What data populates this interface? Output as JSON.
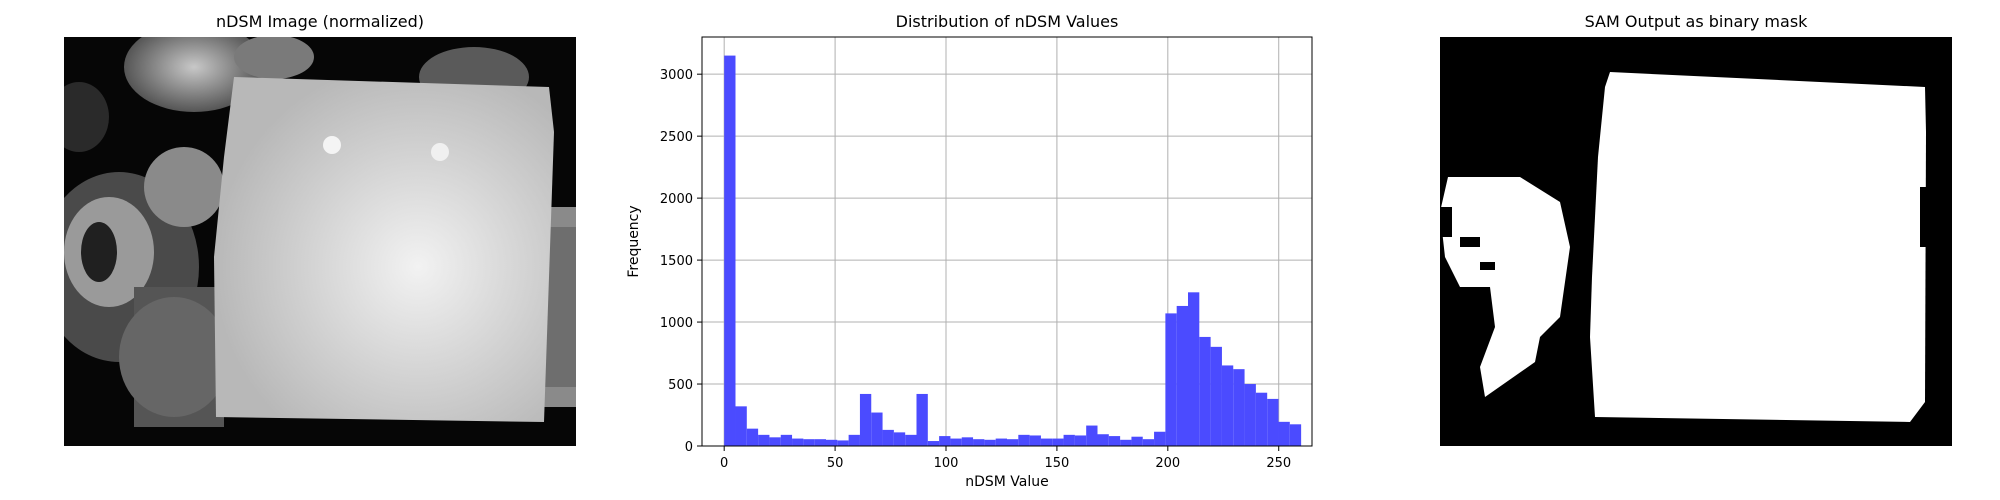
{
  "figure": {
    "panels": [
      {
        "title": "nDSM Image (normalized)"
      },
      {
        "title": "Distribution of nDSM Values"
      },
      {
        "title": "SAM Output as binary mask"
      }
    ]
  },
  "chart_data": {
    "type": "bar",
    "title": "Distribution of nDSM Values",
    "xlabel": "nDSM Value",
    "ylabel": "Frequency",
    "xlim": [
      -10,
      265
    ],
    "ylim": [
      0,
      3300
    ],
    "xticks": [
      0,
      50,
      100,
      150,
      200,
      250
    ],
    "yticks": [
      0,
      500,
      1000,
      1500,
      2000,
      2500,
      3000
    ],
    "grid": true,
    "bar_color": "#4b4bff",
    "bin_width": 5.1,
    "bin_start": 0,
    "values": [
      3150,
      320,
      140,
      90,
      70,
      90,
      60,
      55,
      55,
      50,
      45,
      90,
      420,
      270,
      130,
      110,
      90,
      420,
      40,
      80,
      60,
      70,
      55,
      50,
      60,
      55,
      90,
      85,
      60,
      60,
      90,
      85,
      165,
      95,
      80,
      50,
      75,
      55,
      115,
      1070,
      1130,
      1240,
      880,
      800,
      650,
      620,
      500,
      430,
      380,
      195,
      175
    ]
  }
}
